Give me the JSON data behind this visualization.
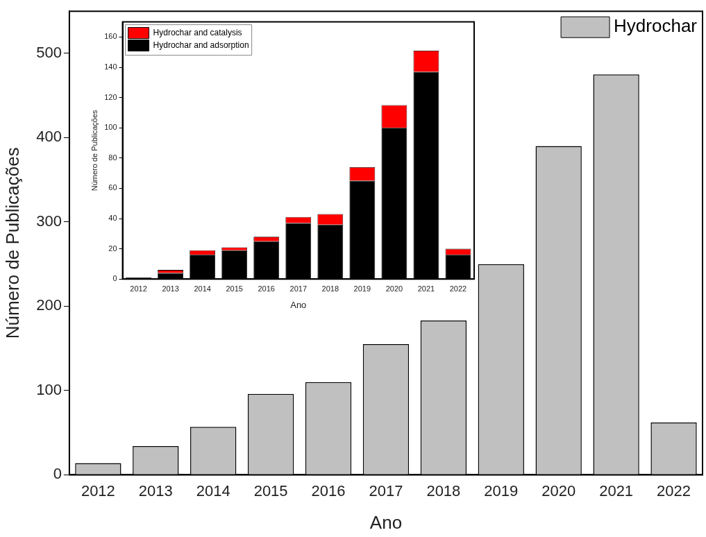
{
  "chart_data": [
    {
      "type": "bar",
      "xlabel": "Ano",
      "ylabel": "Número de Publicações",
      "categories": [
        "2012",
        "2013",
        "2014",
        "2015",
        "2016",
        "2017",
        "2018",
        "2019",
        "2020",
        "2021",
        "2022"
      ],
      "series": [
        {
          "name": "Hydrochar",
          "color": "#c0c0c0",
          "values": [
            14,
            34,
            57,
            96,
            110,
            155,
            183,
            250,
            390,
            475,
            62
          ]
        }
      ],
      "ylim": [
        0,
        550
      ],
      "yticks": [
        0,
        100,
        200,
        300,
        400,
        500
      ],
      "grid": false,
      "legend": "top right"
    },
    {
      "type": "bar",
      "xlabel": "Ano",
      "ylabel": "Número de Publicações",
      "categories": [
        "2012",
        "2013",
        "2014",
        "2015",
        "2016",
        "2017",
        "2018",
        "2019",
        "2020",
        "2021",
        "2022"
      ],
      "stacked": true,
      "series": [
        {
          "name": "Hydrochar and adsorption",
          "color": "#000000",
          "values": [
            1,
            4,
            16,
            19,
            25,
            37,
            36,
            65,
            100,
            137,
            16
          ]
        },
        {
          "name": "Hydrochar and catalysis",
          "color": "#ff0000",
          "values": [
            0,
            2,
            3,
            2,
            3,
            4,
            7,
            9,
            15,
            14,
            4
          ]
        }
      ],
      "ylim": [
        0,
        170
      ],
      "yticks": [
        0,
        20,
        40,
        60,
        80,
        100,
        120,
        140,
        160
      ],
      "grid": false,
      "legend": "top left"
    }
  ]
}
